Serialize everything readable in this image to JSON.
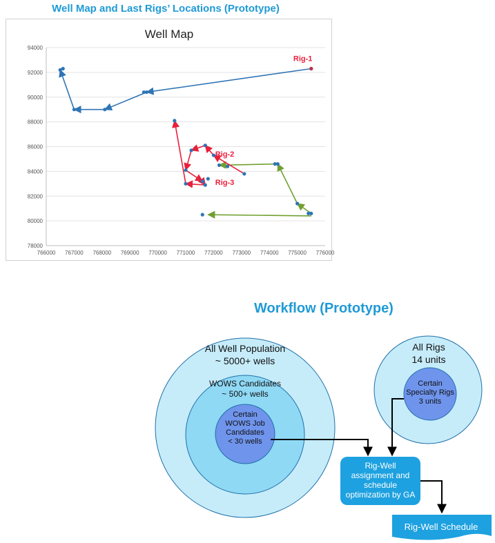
{
  "map_section": {
    "title": "Well Map and Last Rigs’ Locations (Prototype)"
  },
  "chart_data": {
    "type": "scatter",
    "title": "Well Map",
    "xlabel": "",
    "ylabel": "",
    "xlim": [
      766000,
      776000
    ],
    "ylim": [
      78000,
      94000
    ],
    "x_ticks": [
      766000,
      767000,
      768000,
      769000,
      770000,
      771000,
      772000,
      773000,
      774000,
      775000,
      776000
    ],
    "y_ticks": [
      78000,
      80000,
      82000,
      84000,
      86000,
      88000,
      90000,
      92000,
      94000
    ],
    "grid": true,
    "series": [
      {
        "name": "Rig-1",
        "color": "#2e75b6",
        "points": [
          [
            775500,
            92300
          ],
          [
            769600,
            90400
          ],
          [
            768100,
            89000
          ],
          [
            767000,
            89000
          ],
          [
            766500,
            92200
          ]
        ]
      },
      {
        "name": "Rig-2",
        "color": "#70a030",
        "points": [
          [
            775500,
            80600
          ],
          [
            775000,
            81400
          ],
          [
            774300,
            84600
          ],
          [
            772200,
            84500
          ]
        ]
      },
      {
        "name": "Rig-3",
        "color": "#e8203c",
        "points": [
          [
            773100,
            83800
          ],
          [
            772000,
            85300
          ],
          [
            771700,
            86100
          ],
          [
            771200,
            85700
          ],
          [
            771000,
            84100
          ],
          [
            771600,
            83200
          ],
          [
            771700,
            82900
          ],
          [
            771000,
            83000
          ],
          [
            770600,
            88100
          ]
        ]
      }
    ],
    "extra_points": [
      {
        "x": 775500,
        "y": 92300,
        "color": "#c0304a"
      },
      {
        "x": 766600,
        "y": 92300,
        "color": "#2e75b6"
      },
      {
        "x": 769500,
        "y": 90400,
        "color": "#2e75b6"
      },
      {
        "x": 774200,
        "y": 84600,
        "color": "#2e75b6"
      },
      {
        "x": 772500,
        "y": 84400,
        "color": "#2e75b6"
      },
      {
        "x": 775400,
        "y": 80600,
        "color": "#2e75b6"
      },
      {
        "x": 771600,
        "y": 80500,
        "color": "#2e75b6"
      },
      {
        "x": 771800,
        "y": 83400,
        "color": "#2e75b6"
      }
    ],
    "green_return": [
      [
        775500,
        80400
      ],
      [
        771800,
        80500
      ]
    ],
    "annotations": [
      {
        "text": "Rig-1",
        "x": 775200,
        "y": 92900,
        "color": "#e8203c"
      },
      {
        "text": "Rig-2",
        "x": 772400,
        "y": 85200,
        "color": "#e8203c"
      },
      {
        "text": "Rig-3",
        "x": 772400,
        "y": 82900,
        "color": "#e8203c"
      }
    ]
  },
  "workflow": {
    "title": "Workflow (Prototype)",
    "well_population": {
      "line1": "All Well Population",
      "line2": "~ 5000+ wells"
    },
    "wows_candidates": {
      "line1": "WOWS Candidates",
      "line2": "~ 500+ wells"
    },
    "wows_job": {
      "line1": "Certain",
      "line2": "WOWS Job",
      "line3": "Candidates",
      "line4": "< 30 wells"
    },
    "all_rigs": {
      "line1": "All Rigs",
      "line2": "14 units"
    },
    "specialty_rigs": {
      "line1": "Certain",
      "line2": "Specialty Rigs",
      "line3": "3 units"
    },
    "optimization_box": "Rig-Well assignment and schedule optimization by GA",
    "schedule_box": "Rig-Well Schedule",
    "colors": {
      "outer": "#c6ecfa",
      "middle": "#8fd9f5",
      "inner": "#6f94ec",
      "stroke": "#1f6fa8",
      "box": "#1da1e0"
    }
  }
}
